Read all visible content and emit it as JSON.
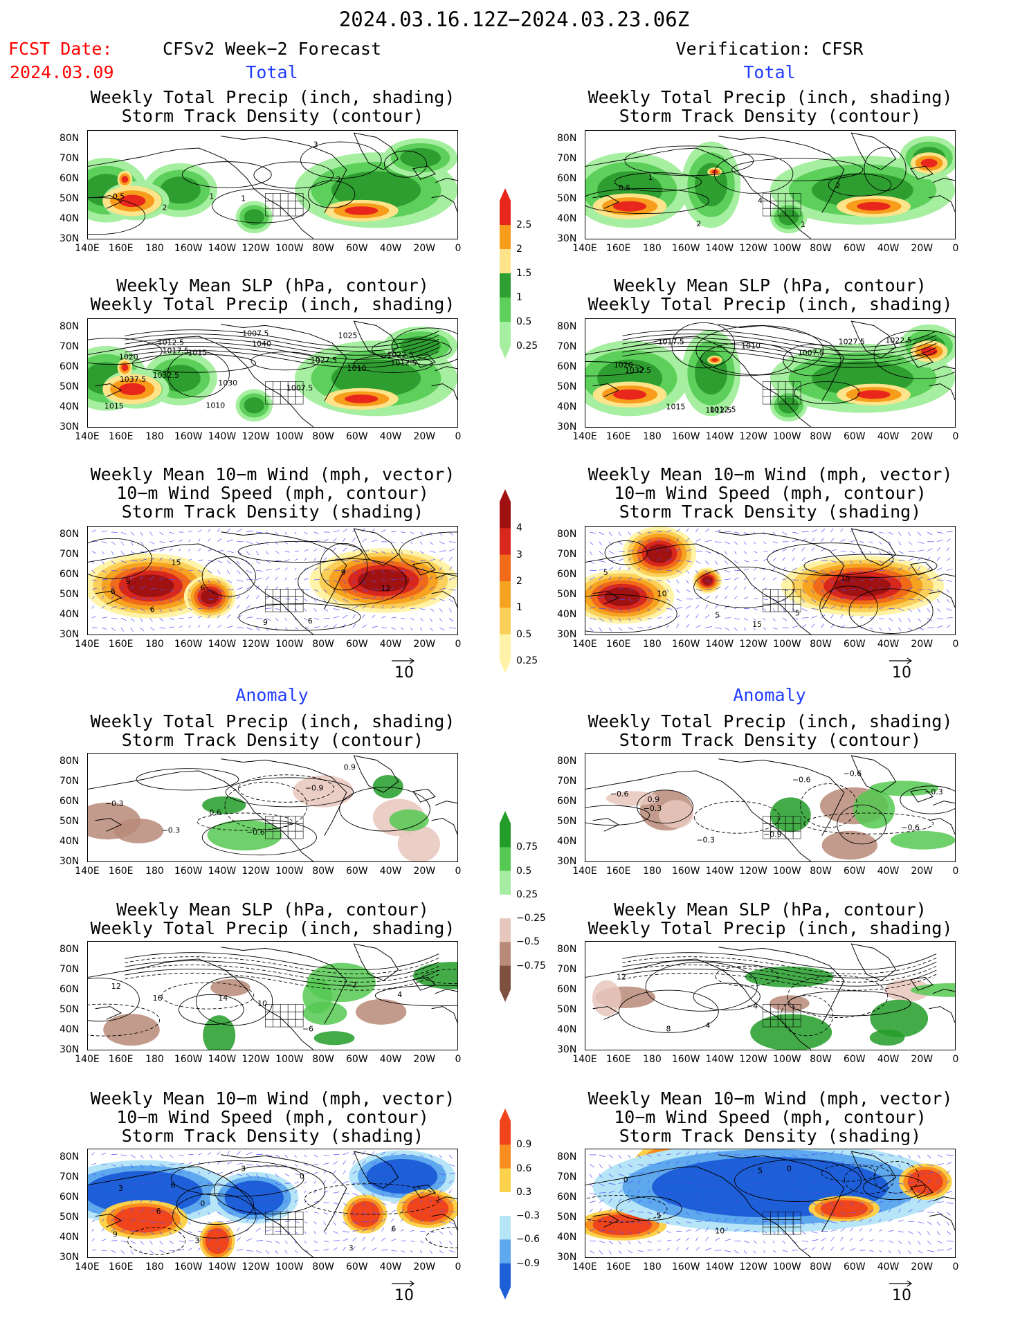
{
  "header": {
    "title": "2024.03.16.12Z−2024.03.23.06Z",
    "fcst_label": "FCST Date:",
    "fcst_date": "2024.03.09",
    "left_heading": "CFSv2 Week−2 Forecast",
    "right_heading": "Verification: CFSR"
  },
  "sections": {
    "total": "Total",
    "anomaly": "Anomaly"
  },
  "panel_titles": {
    "precip_track": [
      "Weekly Total Precip (inch, shading)",
      "Storm Track Density (contour)"
    ],
    "slp_precip": [
      "Weekly Mean SLP (hPa, contour)",
      "Weekly Total Precip (inch, shading)"
    ],
    "wind_track": [
      "Weekly Mean 10−m Wind (mph, vector)",
      "10−m Wind Speed (mph, contour)",
      "Storm Track Density (shading)"
    ]
  },
  "axes": {
    "lat_labels": [
      "80N",
      "70N",
      "60N",
      "50N",
      "40N",
      "30N"
    ],
    "lon_labels": [
      "140E",
      "160E",
      "180",
      "160W",
      "140W",
      "120W",
      "100W",
      "80W",
      "60W",
      "40W",
      "20W",
      "0"
    ]
  },
  "vector_ref": "10",
  "colorbars": {
    "precip_total": {
      "labels": [
        "2.5",
        "2",
        "1.5",
        "1",
        "0.5",
        "0.25"
      ],
      "colors": [
        "#e8261b",
        "#f89c1b",
        "#fde48a",
        "#2f9e30",
        "#5dcf5b",
        "#a6eea0"
      ]
    },
    "track_total": {
      "labels": [
        "4",
        "3",
        "2",
        "1",
        "0.5",
        "0.25"
      ],
      "colors": [
        "#a01212",
        "#d8281d",
        "#f06a1a",
        "#f6a321",
        "#fbd05a",
        "#fff3a8"
      ]
    },
    "precip_anom": {
      "labels": [
        "0.75",
        "0.5",
        "0.25",
        "−0.25",
        "−0.5",
        "−0.75"
      ],
      "colors": [
        "#239c29",
        "#55c951",
        "#a5eba1",
        "#ffffff",
        "#e7c7bd",
        "#b88a78",
        "#7e5040"
      ]
    },
    "track_anom": {
      "labels": [
        "0.9",
        "0.6",
        "0.3",
        "−0.3",
        "−0.6",
        "−0.9"
      ],
      "colors": [
        "#f0441c",
        "#f98e20",
        "#fcd24d",
        "#ffffff",
        "#b6e5f7",
        "#5ea8ee",
        "#1d5fd6"
      ]
    }
  },
  "contour_labels": {
    "fcst_total_precip": [
      "0.5",
      "2",
      "1",
      "1",
      "3",
      "2"
    ],
    "fcst_total_slp": [
      "1037.5",
      "1032.5",
      "1030",
      "1040",
      "1027.5",
      "1025",
      "1022.5",
      "1020",
      "1012.5",
      "1010",
      "1007.5",
      "1007.5",
      "1010",
      "1012.5",
      "1015",
      "1017.5",
      "1015"
    ],
    "fcst_total_wind": [
      "9",
      "15",
      "6",
      "9",
      "6",
      "9",
      "12",
      "6",
      "6"
    ],
    "cfsr_total_precip": [
      "0.5",
      "1",
      "2",
      "4",
      "1",
      "2"
    ],
    "cfsr_total_slp": [
      "1032.5",
      "1015",
      "1012.5",
      "1010",
      "1007.5",
      "1027.5",
      "1022.5",
      "1020",
      "1017.5",
      "1012.5"
    ],
    "cfsr_total_wind": [
      "5",
      "10",
      "5",
      "15",
      "5",
      "10"
    ],
    "fcst_anom_precip": [
      "−0.3",
      "−0.3",
      "0.6",
      "−0.6",
      "−0.9",
      "0.9"
    ],
    "fcst_anom_slp": [
      "12",
      "16",
      "14",
      "10",
      "−6",
      "−2",
      "4"
    ],
    "fcst_anom_wind": [
      "3",
      "6",
      "0",
      "3",
      "0",
      "3",
      "6",
      "9",
      "6",
      "3"
    ],
    "cfsr_anom_precip": [
      "−0.6",
      "0.9",
      "−0.3",
      "−0.9",
      "−0.6",
      "−0.6",
      "−0.6",
      "−0.3",
      "−0.3"
    ],
    "cfsr_anom_slp": [
      "12",
      "8",
      "4",
      "−4"
    ],
    "cfsr_anom_wind": [
      "0",
      "5",
      "10",
      "5",
      "0"
    ]
  }
}
